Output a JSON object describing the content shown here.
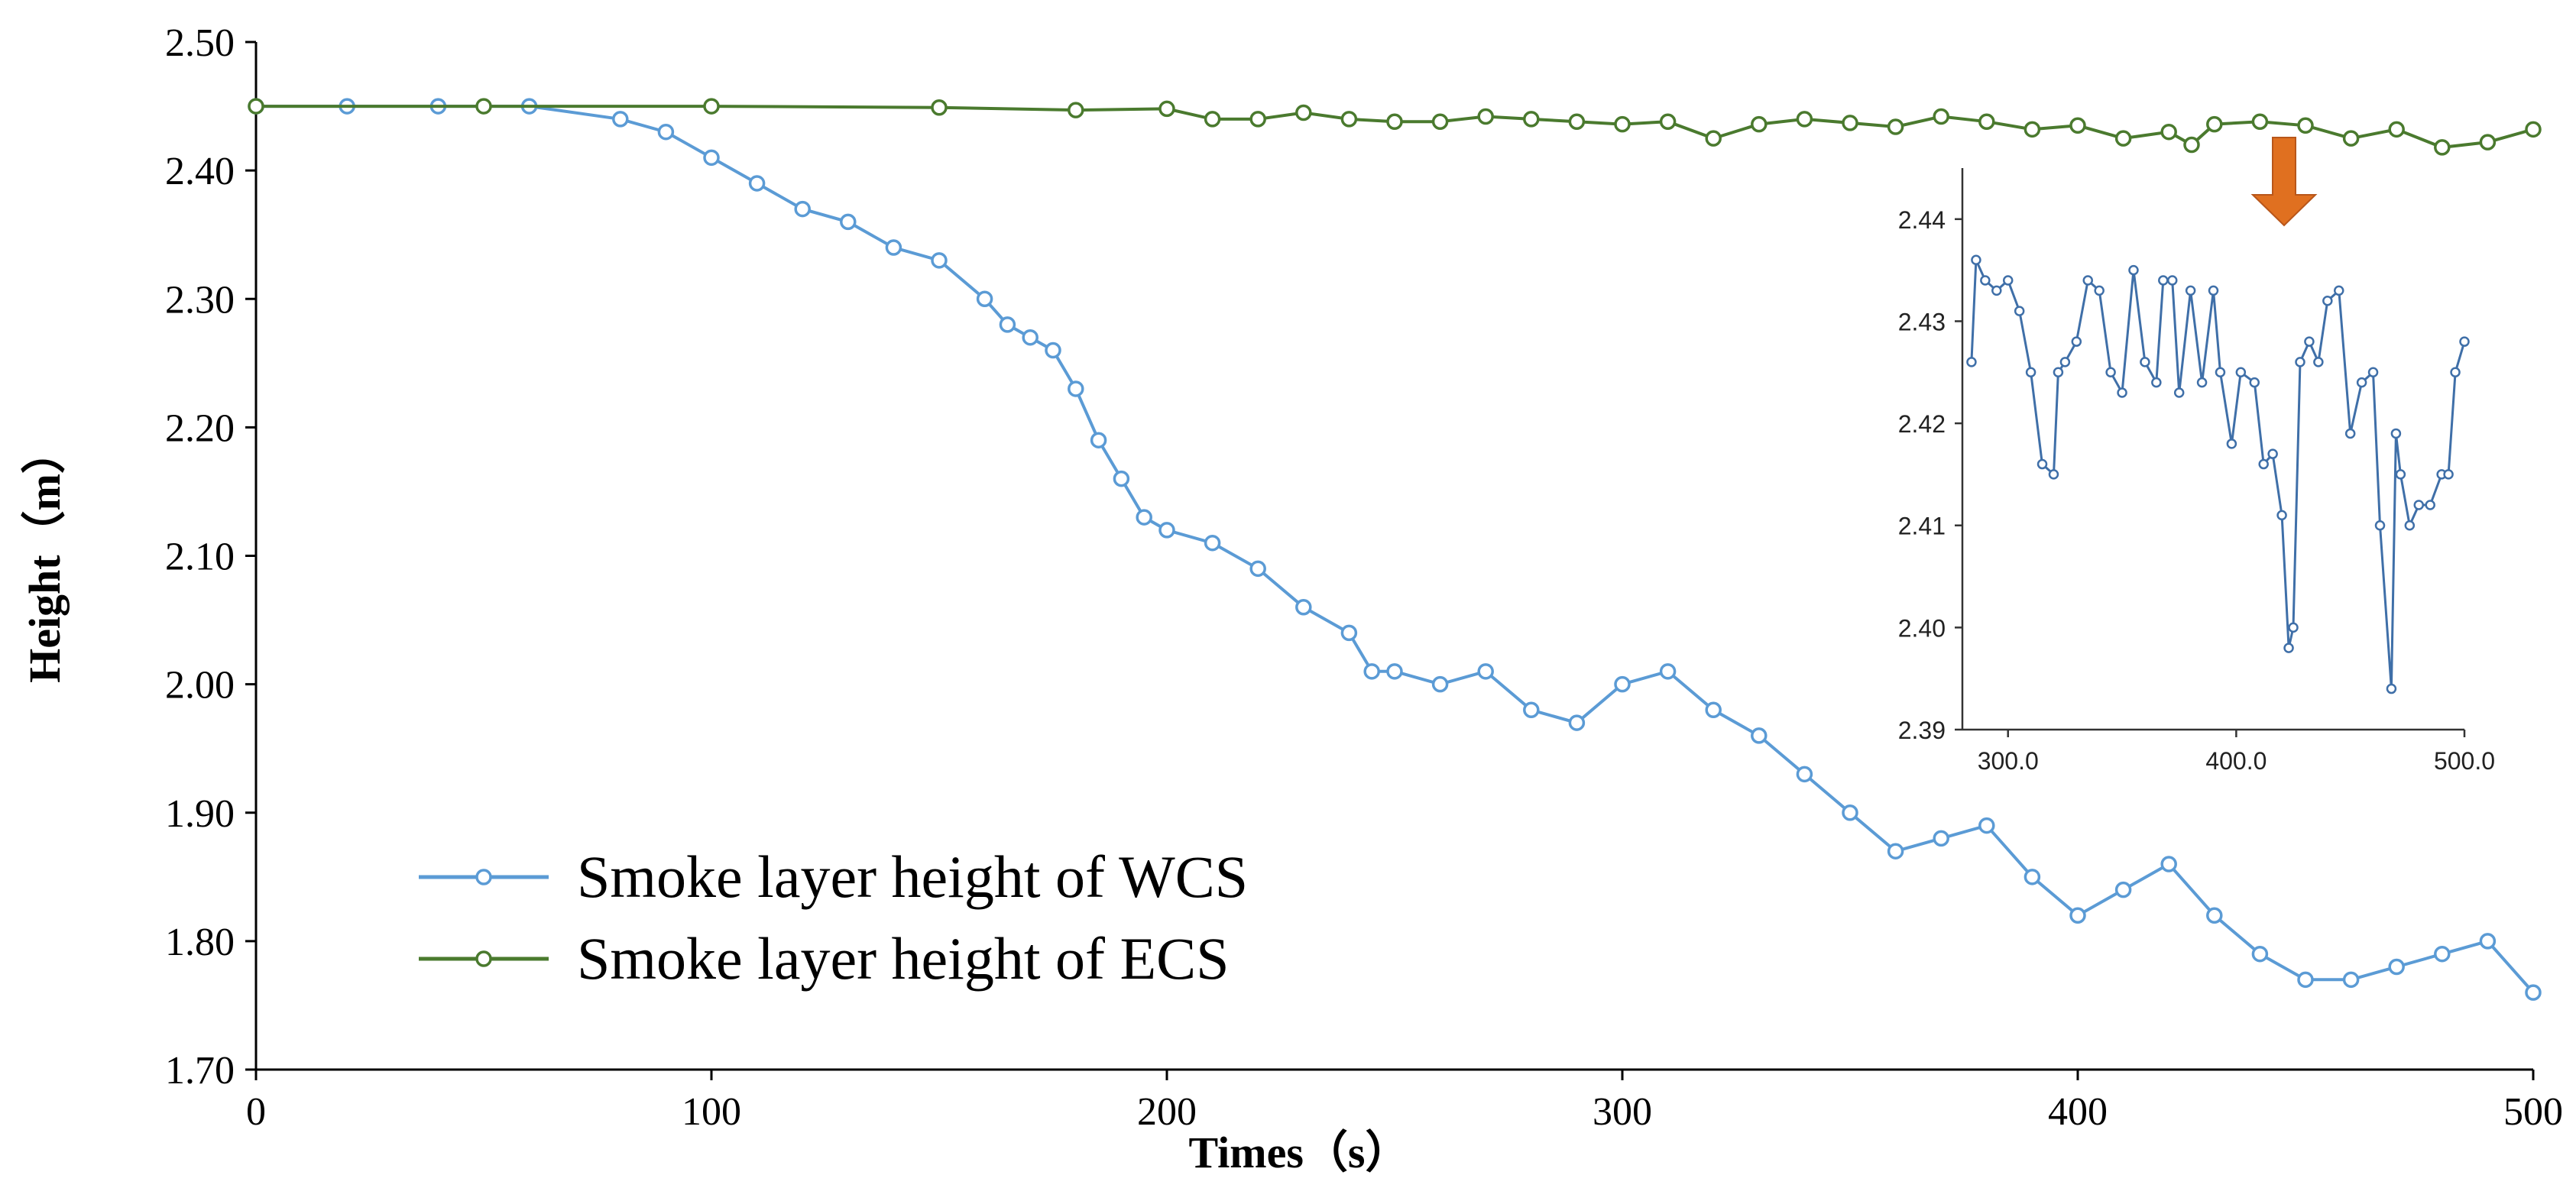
{
  "chart_data": [
    {
      "type": "line",
      "role": "main",
      "title": "",
      "xlabel": "Times（s）",
      "ylabel": "Height（m）",
      "xlim": [
        0,
        500
      ],
      "ylim": [
        1.7,
        2.5
      ],
      "x_ticks": [
        0,
        100,
        200,
        300,
        400,
        500
      ],
      "y_ticks": [
        "1.70",
        "1.80",
        "1.90",
        "2.00",
        "2.10",
        "2.20",
        "2.30",
        "2.40",
        "2.50"
      ],
      "legend_position": "bottom-left",
      "grid": false,
      "series": [
        {
          "name": "Smoke layer height of WCS",
          "color": "#5b9bd5",
          "marker": "circle-open",
          "x": [
            0,
            20,
            40,
            60,
            80,
            90,
            100,
            110,
            120,
            130,
            140,
            150,
            160,
            165,
            170,
            175,
            180,
            185,
            190,
            195,
            200,
            210,
            220,
            230,
            240,
            245,
            250,
            260,
            270,
            280,
            290,
            300,
            310,
            320,
            330,
            340,
            350,
            360,
            370,
            380,
            390,
            400,
            410,
            420,
            430,
            440,
            450,
            460,
            470,
            480,
            490,
            500
          ],
          "values": [
            2.45,
            2.45,
            2.45,
            2.45,
            2.44,
            2.43,
            2.41,
            2.39,
            2.37,
            2.36,
            2.34,
            2.33,
            2.3,
            2.28,
            2.27,
            2.26,
            2.23,
            2.19,
            2.16,
            2.13,
            2.12,
            2.11,
            2.09,
            2.06,
            2.04,
            2.01,
            2.01,
            2.0,
            2.01,
            1.98,
            1.97,
            2.0,
            2.01,
            1.98,
            1.96,
            1.93,
            1.9,
            1.87,
            1.88,
            1.89,
            1.85,
            1.82,
            1.84,
            1.86,
            1.82,
            1.79,
            1.77,
            1.77,
            1.78,
            1.79,
            1.8,
            1.76
          ]
        },
        {
          "name": "Smoke layer height of ECS",
          "color": "#4a7a2e",
          "marker": "circle-open",
          "x": [
            0,
            50,
            100,
            150,
            180,
            200,
            210,
            220,
            230,
            240,
            250,
            260,
            270,
            280,
            290,
            300,
            310,
            320,
            330,
            340,
            350,
            360,
            370,
            380,
            390,
            400,
            410,
            420,
            425,
            430,
            440,
            450,
            460,
            470,
            480,
            490,
            500
          ],
          "values": [
            2.45,
            2.45,
            2.45,
            2.449,
            2.447,
            2.448,
            2.44,
            2.44,
            2.445,
            2.44,
            2.438,
            2.438,
            2.442,
            2.44,
            2.438,
            2.436,
            2.438,
            2.425,
            2.436,
            2.44,
            2.437,
            2.434,
            2.442,
            2.438,
            2.432,
            2.435,
            2.425,
            2.43,
            2.42,
            2.436,
            2.438,
            2.435,
            2.425,
            2.432,
            2.418,
            2.422,
            2.432
          ]
        }
      ]
    },
    {
      "type": "line",
      "role": "inset-zoom-ECS",
      "title": "",
      "xlim": [
        280,
        500
      ],
      "ylim": [
        2.39,
        2.445
      ],
      "x_ticks": [
        "300.0",
        "400.0",
        "500.0"
      ],
      "y_ticks": [
        "2.39",
        "2.40",
        "2.41",
        "2.42",
        "2.43",
        "2.44"
      ],
      "series": [
        {
          "name": "Smoke layer height of ECS (zoom)",
          "color": "#3f6fa8",
          "marker": "circle-open",
          "x": [
            284,
            286,
            290,
            295,
            300,
            305,
            310,
            315,
            320,
            322,
            325,
            330,
            335,
            340,
            345,
            350,
            355,
            360,
            365,
            368,
            372,
            375,
            380,
            385,
            390,
            393,
            398,
            402,
            408,
            412,
            416,
            420,
            423,
            425,
            428,
            432,
            436,
            440,
            445,
            450,
            455,
            460,
            463,
            468,
            470,
            472,
            476,
            480,
            485,
            490,
            493,
            496,
            500
          ],
          "values": [
            2.426,
            2.436,
            2.434,
            2.433,
            2.434,
            2.431,
            2.425,
            2.416,
            2.415,
            2.425,
            2.426,
            2.428,
            2.434,
            2.433,
            2.425,
            2.423,
            2.435,
            2.426,
            2.424,
            2.434,
            2.434,
            2.423,
            2.433,
            2.424,
            2.433,
            2.425,
            2.418,
            2.425,
            2.424,
            2.416,
            2.417,
            2.411,
            2.398,
            2.4,
            2.426,
            2.428,
            2.426,
            2.432,
            2.433,
            2.419,
            2.424,
            2.425,
            2.41,
            2.394,
            2.419,
            2.415,
            2.41,
            2.412,
            2.412,
            2.415,
            2.415,
            2.425,
            2.428
          ]
        }
      ]
    }
  ],
  "annotation": {
    "arrow_color": "#e07020"
  }
}
